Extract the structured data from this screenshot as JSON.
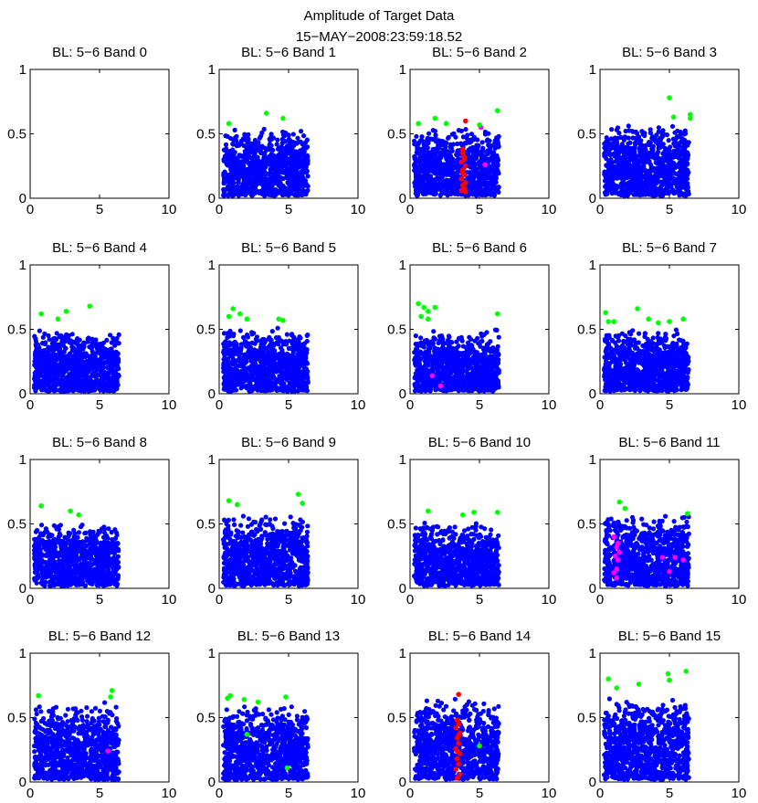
{
  "figure": {
    "title_line1": "Amplitude of Target Data",
    "title_line2": "15−MAY−2008:23:59:18.52"
  },
  "colors": {
    "blue": "#0000ff",
    "green": "#00ff00",
    "red": "#ff0000",
    "magenta": "#ff00ff"
  },
  "chart_data": [
    {
      "type": "scatter",
      "title": "BL: 5−6 Band 0",
      "xlim": [
        0,
        10
      ],
      "ylim": [
        0,
        1
      ],
      "xticks": [
        "0",
        "5",
        "10"
      ],
      "yticks": [
        "0",
        "0.5",
        "1"
      ],
      "bulk": null,
      "green": [],
      "red": [],
      "magenta": []
    },
    {
      "type": "scatter",
      "title": "BL: 5−6 Band 1",
      "xlim": [
        0,
        10
      ],
      "ylim": [
        0,
        1
      ],
      "xticks": [
        "0",
        "5",
        "10"
      ],
      "yticks": [
        "0",
        "0.5",
        "1"
      ],
      "bulk": {
        "xmin": 0.3,
        "xmax": 6.4,
        "ymin": 0.02,
        "ymax": 0.55
      },
      "green": [
        [
          0.7,
          0.58
        ],
        [
          3.4,
          0.66
        ],
        [
          4.6,
          0.62
        ]
      ],
      "red": [],
      "magenta": []
    },
    {
      "type": "scatter",
      "title": "BL: 5−6 Band 2",
      "xlim": [
        0,
        10
      ],
      "ylim": [
        0,
        1
      ],
      "xticks": [
        "0",
        "5",
        "10"
      ],
      "yticks": [
        "0",
        "0.5",
        "1"
      ],
      "bulk": {
        "xmin": 0.3,
        "xmax": 6.4,
        "ymin": 0.02,
        "ymax": 0.56
      },
      "green": [
        [
          0.6,
          0.58
        ],
        [
          1.8,
          0.62
        ],
        [
          2.6,
          0.58
        ],
        [
          5.0,
          0.57
        ],
        [
          6.3,
          0.68
        ]
      ],
      "red": [
        [
          4.0,
          0.6
        ],
        [
          3.8,
          0.38
        ],
        [
          3.9,
          0.32
        ],
        [
          3.7,
          0.28
        ],
        [
          4.0,
          0.25
        ],
        [
          3.8,
          0.22
        ],
        [
          3.9,
          0.18
        ],
        [
          3.7,
          0.15
        ],
        [
          4.0,
          0.12
        ],
        [
          3.8,
          0.1
        ],
        [
          3.9,
          0.08
        ],
        [
          3.7,
          0.06
        ],
        [
          4.0,
          0.05
        ],
        [
          3.8,
          0.2
        ],
        [
          3.9,
          0.3
        ],
        [
          3.8,
          0.35
        ]
      ],
      "magenta": [
        [
          5.4,
          0.26
        ],
        [
          5.1,
          0.55
        ]
      ]
    },
    {
      "type": "scatter",
      "title": "BL: 5−6 Band 3",
      "xlim": [
        0,
        10
      ],
      "ylim": [
        0,
        1
      ],
      "xticks": [
        "0",
        "5",
        "10"
      ],
      "yticks": [
        "0",
        "0.5",
        "1"
      ],
      "bulk": {
        "xmin": 0.3,
        "xmax": 6.4,
        "ymin": 0.02,
        "ymax": 0.58
      },
      "green": [
        [
          5.0,
          0.78
        ],
        [
          5.3,
          0.63
        ],
        [
          6.5,
          0.65
        ],
        [
          6.5,
          0.62
        ]
      ],
      "red": [],
      "magenta": []
    },
    {
      "type": "scatter",
      "title": "BL: 5−6 Band 4",
      "xlim": [
        0,
        10
      ],
      "ylim": [
        0,
        1
      ],
      "xticks": [
        "0",
        "5",
        "10"
      ],
      "yticks": [
        "0",
        "0.5",
        "1"
      ],
      "bulk": {
        "xmin": 0.3,
        "xmax": 6.4,
        "ymin": 0.02,
        "ymax": 0.5
      },
      "green": [
        [
          0.8,
          0.62
        ],
        [
          2.0,
          0.58
        ],
        [
          2.6,
          0.64
        ],
        [
          4.3,
          0.68
        ]
      ],
      "red": [],
      "magenta": []
    },
    {
      "type": "scatter",
      "title": "BL: 5−6 Band 5",
      "xlim": [
        0,
        10
      ],
      "ylim": [
        0,
        1
      ],
      "xticks": [
        "0",
        "5",
        "10"
      ],
      "yticks": [
        "0",
        "0.5",
        "1"
      ],
      "bulk": {
        "xmin": 0.3,
        "xmax": 6.4,
        "ymin": 0.02,
        "ymax": 0.52
      },
      "green": [
        [
          0.7,
          0.6
        ],
        [
          1.0,
          0.66
        ],
        [
          1.5,
          0.62
        ],
        [
          2.0,
          0.58
        ],
        [
          4.3,
          0.58
        ],
        [
          4.6,
          0.57
        ]
      ],
      "red": [],
      "magenta": []
    },
    {
      "type": "scatter",
      "title": "BL: 5−6 Band 6",
      "xlim": [
        0,
        10
      ],
      "ylim": [
        0,
        1
      ],
      "xticks": [
        "0",
        "5",
        "10"
      ],
      "yticks": [
        "0",
        "0.5",
        "1"
      ],
      "bulk": {
        "xmin": 0.3,
        "xmax": 6.4,
        "ymin": 0.02,
        "ymax": 0.5
      },
      "green": [
        [
          0.6,
          0.7
        ],
        [
          1.0,
          0.67
        ],
        [
          1.3,
          0.64
        ],
        [
          1.8,
          0.67
        ],
        [
          0.8,
          0.6
        ],
        [
          1.3,
          0.58
        ],
        [
          6.3,
          0.62
        ]
      ],
      "red": [],
      "magenta": [
        [
          1.6,
          0.14
        ],
        [
          2.2,
          0.06
        ]
      ]
    },
    {
      "type": "scatter",
      "title": "BL: 5−6 Band 7",
      "xlim": [
        0,
        10
      ],
      "ylim": [
        0,
        1
      ],
      "xticks": [
        "0",
        "5",
        "10"
      ],
      "yticks": [
        "0",
        "0.5",
        "1"
      ],
      "bulk": {
        "xmin": 0.3,
        "xmax": 6.4,
        "ymin": 0.02,
        "ymax": 0.5
      },
      "green": [
        [
          0.4,
          0.63
        ],
        [
          0.6,
          0.56
        ],
        [
          1.0,
          0.56
        ],
        [
          2.7,
          0.66
        ],
        [
          3.5,
          0.58
        ],
        [
          4.2,
          0.55
        ],
        [
          5.0,
          0.56
        ],
        [
          6.0,
          0.58
        ]
      ],
      "red": [],
      "magenta": []
    },
    {
      "type": "scatter",
      "title": "BL: 5−6 Band 8",
      "xlim": [
        0,
        10
      ],
      "ylim": [
        0,
        1
      ],
      "xticks": [
        "0",
        "5",
        "10"
      ],
      "yticks": [
        "0",
        "0.5",
        "1"
      ],
      "bulk": {
        "xmin": 0.3,
        "xmax": 6.4,
        "ymin": 0.02,
        "ymax": 0.52
      },
      "green": [
        [
          0.8,
          0.64
        ],
        [
          2.9,
          0.6
        ],
        [
          3.5,
          0.57
        ]
      ],
      "red": [],
      "magenta": []
    },
    {
      "type": "scatter",
      "title": "BL: 5−6 Band 9",
      "xlim": [
        0,
        10
      ],
      "ylim": [
        0,
        1
      ],
      "xticks": [
        "0",
        "5",
        "10"
      ],
      "yticks": [
        "0",
        "0.5",
        "1"
      ],
      "bulk": {
        "xmin": 0.3,
        "xmax": 6.4,
        "ymin": 0.02,
        "ymax": 0.58
      },
      "green": [
        [
          0.7,
          0.68
        ],
        [
          1.3,
          0.65
        ],
        [
          5.7,
          0.73
        ],
        [
          6.0,
          0.66
        ]
      ],
      "red": [],
      "magenta": []
    },
    {
      "type": "scatter",
      "title": "BL: 5−6 Band 10",
      "xlim": [
        0,
        10
      ],
      "ylim": [
        0,
        1
      ],
      "xticks": [
        "0",
        "5",
        "10"
      ],
      "yticks": [
        "0",
        "0.5",
        "1"
      ],
      "bulk": {
        "xmin": 0.3,
        "xmax": 6.4,
        "ymin": 0.02,
        "ymax": 0.52
      },
      "green": [
        [
          1.3,
          0.6
        ],
        [
          3.8,
          0.57
        ],
        [
          4.6,
          0.59
        ],
        [
          6.3,
          0.59
        ]
      ],
      "red": [],
      "magenta": []
    },
    {
      "type": "scatter",
      "title": "BL: 5−6 Band 11",
      "xlim": [
        0,
        10
      ],
      "ylim": [
        0,
        1
      ],
      "xticks": [
        "0",
        "5",
        "10"
      ],
      "yticks": [
        "0",
        "0.5",
        "1"
      ],
      "bulk": {
        "xmin": 0.3,
        "xmax": 6.4,
        "ymin": 0.02,
        "ymax": 0.58
      },
      "green": [
        [
          1.4,
          0.67
        ],
        [
          1.8,
          0.62
        ],
        [
          6.3,
          0.58
        ]
      ],
      "red": [],
      "magenta": [
        [
          1.0,
          0.4
        ],
        [
          1.3,
          0.35
        ],
        [
          1.2,
          0.32
        ],
        [
          1.4,
          0.28
        ],
        [
          1.1,
          0.25
        ],
        [
          1.3,
          0.22
        ],
        [
          1.2,
          0.15
        ],
        [
          1.0,
          0.12
        ],
        [
          1.2,
          0.08
        ],
        [
          4.5,
          0.24
        ],
        [
          5.4,
          0.24
        ],
        [
          6.0,
          0.22
        ],
        [
          5.0,
          0.13
        ]
      ]
    },
    {
      "type": "scatter",
      "title": "BL: 5−6 Band 12",
      "xlim": [
        0,
        10
      ],
      "ylim": [
        0,
        1
      ],
      "xticks": [
        "0",
        "5",
        "10"
      ],
      "yticks": [
        "0",
        "0.5",
        "1"
      ],
      "bulk": {
        "xmin": 0.3,
        "xmax": 6.4,
        "ymin": 0.02,
        "ymax": 0.62
      },
      "green": [
        [
          0.6,
          0.67
        ],
        [
          5.9,
          0.71
        ],
        [
          5.8,
          0.66
        ]
      ],
      "red": [],
      "magenta": [
        [
          5.6,
          0.24
        ]
      ]
    },
    {
      "type": "scatter",
      "title": "BL: 5−6 Band 13",
      "xlim": [
        0,
        10
      ],
      "ylim": [
        0,
        1
      ],
      "xticks": [
        "0",
        "5",
        "10"
      ],
      "yticks": [
        "0",
        "0.5",
        "1"
      ],
      "bulk": {
        "xmin": 0.3,
        "xmax": 6.4,
        "ymin": 0.02,
        "ymax": 0.6
      },
      "green": [
        [
          0.6,
          0.65
        ],
        [
          0.8,
          0.67
        ],
        [
          1.8,
          0.64
        ],
        [
          2.8,
          0.62
        ],
        [
          4.8,
          0.66
        ],
        [
          2.0,
          0.37
        ],
        [
          4.9,
          0.11
        ]
      ],
      "red": [],
      "magenta": []
    },
    {
      "type": "scatter",
      "title": "BL: 5−6 Band 14",
      "xlim": [
        0,
        10
      ],
      "ylim": [
        0,
        1
      ],
      "xticks": [
        "0",
        "5",
        "10"
      ],
      "yticks": [
        "0",
        "0.5",
        "1"
      ],
      "bulk": {
        "xmin": 0.3,
        "xmax": 6.4,
        "ymin": 0.02,
        "ymax": 0.66
      },
      "green": [
        [
          5.0,
          0.28
        ]
      ],
      "red": [
        [
          3.5,
          0.68
        ],
        [
          3.4,
          0.48
        ],
        [
          3.5,
          0.45
        ],
        [
          3.3,
          0.42
        ],
        [
          3.6,
          0.38
        ],
        [
          3.4,
          0.34
        ],
        [
          3.5,
          0.3
        ],
        [
          3.3,
          0.26
        ],
        [
          3.6,
          0.22
        ],
        [
          3.4,
          0.18
        ],
        [
          3.5,
          0.14
        ],
        [
          3.3,
          0.1
        ],
        [
          3.6,
          0.06
        ],
        [
          3.4,
          0.03
        ],
        [
          3.5,
          0.36
        ],
        [
          3.4,
          0.24
        ]
      ],
      "magenta": []
    },
    {
      "type": "scatter",
      "title": "BL: 5−6 Band 15",
      "xlim": [
        0,
        10
      ],
      "ylim": [
        0,
        1
      ],
      "xticks": [
        "0",
        "5",
        "10"
      ],
      "yticks": [
        "0",
        "0.5",
        "1"
      ],
      "bulk": {
        "xmin": 0.3,
        "xmax": 6.4,
        "ymin": 0.02,
        "ymax": 0.66
      },
      "green": [
        [
          0.6,
          0.8
        ],
        [
          1.2,
          0.73
        ],
        [
          2.8,
          0.76
        ],
        [
          4.9,
          0.84
        ],
        [
          5.0,
          0.79
        ],
        [
          6.2,
          0.86
        ]
      ],
      "red": [],
      "magenta": []
    }
  ]
}
